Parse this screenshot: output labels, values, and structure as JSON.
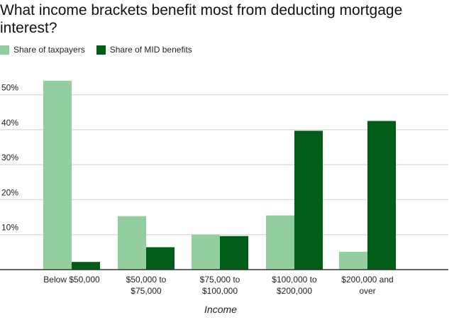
{
  "chart_data": {
    "type": "bar",
    "title": "What income brackets benefit most from deducting mortgage interest?",
    "xlabel": "Income",
    "ylabel": "",
    "categories": [
      [
        "Below $50,000"
      ],
      [
        "$50,000 to",
        "$75,000"
      ],
      [
        "$75,000 to",
        "$100,000"
      ],
      [
        "$100,000 to",
        "$200,000"
      ],
      [
        "$200,000 and",
        "over"
      ]
    ],
    "series": [
      {
        "name": "Share of taxpayers",
        "color": "#93ce9f",
        "values": [
          54.0,
          15.3,
          10.0,
          15.5,
          5.1
        ]
      },
      {
        "name": "Share of MID benefits",
        "color": "#005d17",
        "values": [
          2.2,
          6.4,
          9.6,
          39.7,
          42.5
        ]
      }
    ],
    "yticks": [
      "10%",
      "20%",
      "30%",
      "40%",
      "50%"
    ],
    "ytick_values": [
      10,
      20,
      30,
      40,
      50
    ],
    "ylim": [
      0,
      55
    ],
    "grid": true,
    "legend": "top-left"
  }
}
